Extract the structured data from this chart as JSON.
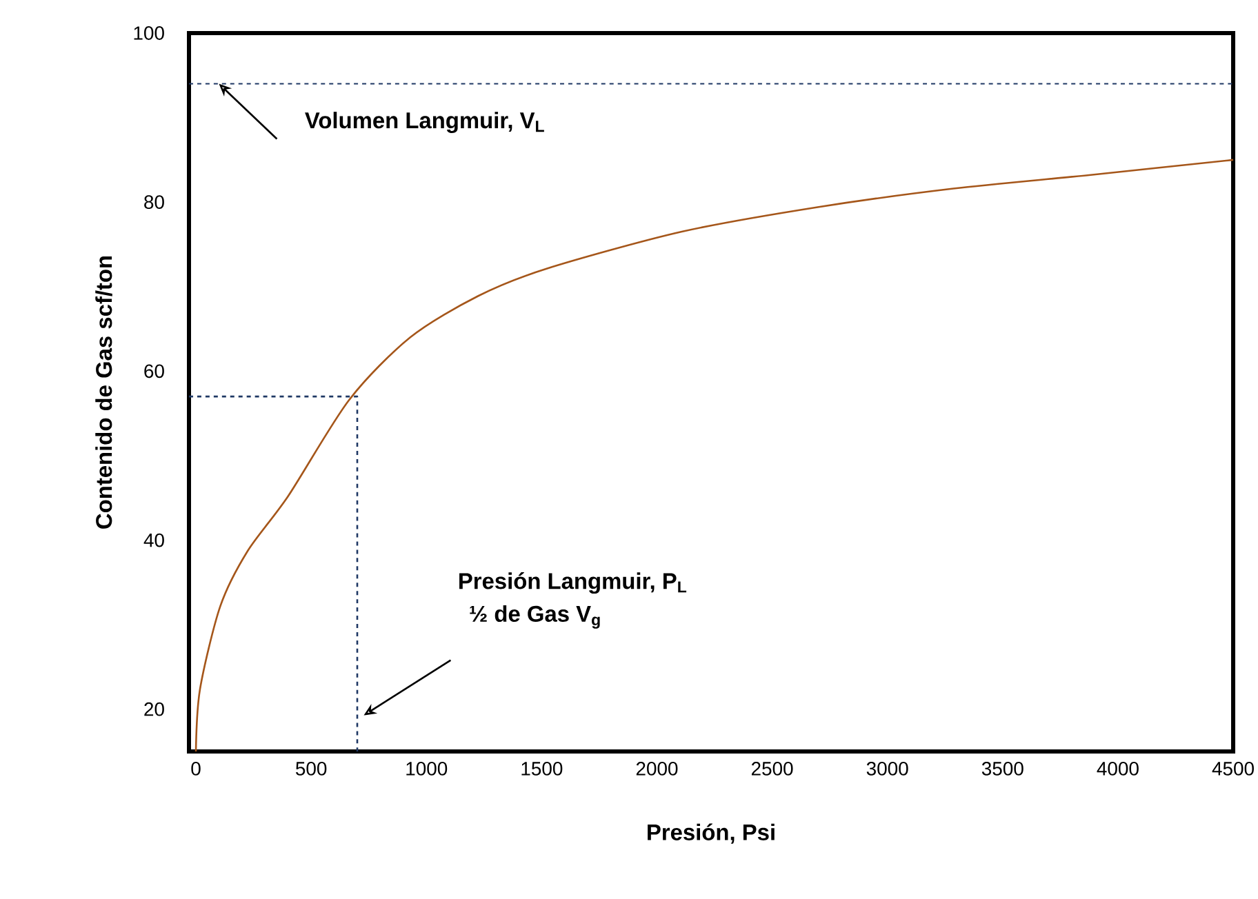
{
  "chart_data": {
    "type": "line",
    "xlabel": "Presión, Psi",
    "ylabel": "Contenido de Gas scf/ton",
    "xlim": [
      -30,
      4500
    ],
    "xticks": [
      0,
      500,
      1000,
      1500,
      2000,
      2500,
      3000,
      3500,
      4000,
      4500
    ],
    "ylim": [
      15,
      100
    ],
    "yticks": [
      20,
      40,
      60,
      80,
      100
    ],
    "series": [
      {
        "color": "#a5561a",
        "line_style": "solid",
        "x": [
          0,
          18,
          106,
          224,
          400,
          665,
          930,
          1225,
          1519,
          2108,
          2697,
          3286,
          3875,
          4500
        ],
        "values": [
          15,
          22.4,
          32.2,
          38.7,
          45.2,
          56.6,
          64,
          68.9,
          72.1,
          76.5,
          79.4,
          81.6,
          83.2,
          85
        ]
      },
      {
        "color": "#1f3864",
        "line_style": "dashed",
        "x": [
          -30,
          700,
          700
        ],
        "values": [
          57,
          57,
          15
        ]
      }
    ],
    "ref_lines": [
      {
        "axis": "y",
        "value": 94,
        "color": "#1f3864",
        "line_style": "dashed"
      }
    ],
    "annotations": [
      {
        "text": "Volumen Langmuir, V$_{L}$",
        "x": 100,
        "y": 94
      },
      "Presión Langmuir, P$_{L}$",
      "½ de Gas V$_{g}$"
    ],
    "grid": false,
    "marker": "none"
  }
}
